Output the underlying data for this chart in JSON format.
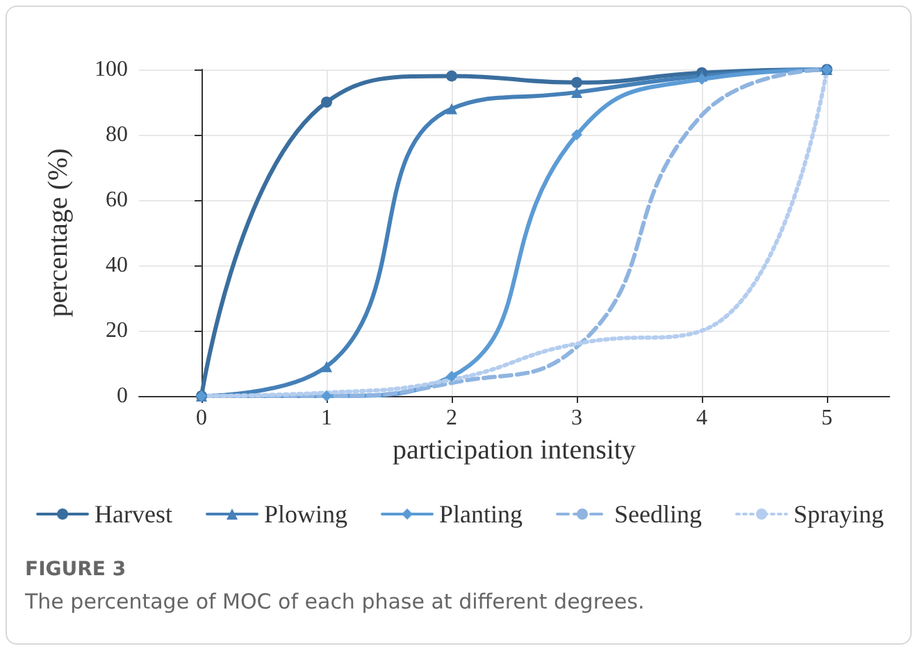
{
  "chart_data": {
    "type": "line",
    "title": "FIGURE 3",
    "subtitle": "The percentage of MOC of each phase at different degrees.",
    "xlabel": "participation intensity",
    "ylabel": "percentage (%)",
    "x": [
      0,
      1,
      2,
      3,
      4,
      5
    ],
    "xlim": [
      -0.5,
      5.5
    ],
    "xticks": [
      0,
      1,
      2,
      3,
      4,
      5
    ],
    "ylim": [
      0,
      100
    ],
    "yticks": [
      0,
      20,
      40,
      60,
      80,
      100
    ],
    "grid": true,
    "legend": "bottom",
    "series": [
      {
        "name": "Harvest",
        "color": "#3a6e9e",
        "marker": "circle",
        "line_style": "solid",
        "values": [
          0,
          90,
          98,
          96,
          99,
          100
        ]
      },
      {
        "name": "Plowing",
        "color": "#4580b8",
        "marker": "triangle",
        "line_style": "solid",
        "values": [
          0,
          9,
          88,
          93,
          98,
          100
        ]
      },
      {
        "name": "Planting",
        "color": "#5b9bd5",
        "marker": "diamond",
        "line_style": "solid",
        "values": [
          0,
          0,
          6,
          80,
          97,
          100
        ]
      },
      {
        "name": "Seedling",
        "color": "#8fb4e0",
        "marker": "none",
        "line_style": "dashed",
        "values": [
          0,
          0,
          4,
          15,
          86,
          100
        ]
      },
      {
        "name": "Spraying",
        "color": "#b4cdef",
        "marker": "none",
        "line_style": "dotted",
        "values": [
          0,
          1,
          5,
          16,
          20,
          100
        ]
      }
    ]
  }
}
